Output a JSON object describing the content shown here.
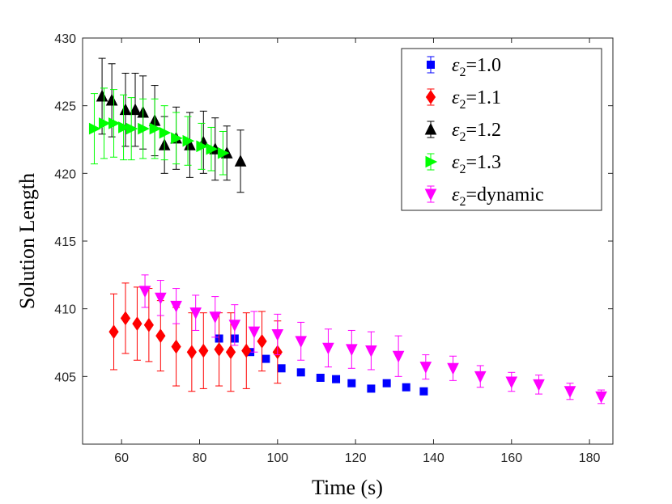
{
  "chart_data": {
    "type": "scatter",
    "title": "",
    "xlabel": "Time (s)",
    "ylabel": "Solution Length",
    "xlim": [
      50,
      186
    ],
    "ylim": [
      400,
      430
    ],
    "xticks": [
      60,
      80,
      100,
      120,
      140,
      160,
      180
    ],
    "xtick_labels": [
      "60",
      "80",
      "100",
      "120",
      "140",
      "160",
      "180"
    ],
    "yticks": [
      405,
      410,
      415,
      420,
      425,
      430
    ],
    "ytick_labels": [
      "405",
      "410",
      "415",
      "420",
      "425",
      "430"
    ],
    "grid": false,
    "legend_position": "top-right",
    "series": [
      {
        "name": "ε2=1.0",
        "legend_symbol": "ε",
        "legend_subscript": "2",
        "legend_value": "=1.0",
        "color": "#0000ff",
        "marker": "square",
        "x": [
          85.0,
          89.0,
          93.0,
          97.0,
          101.0,
          106.0,
          111.0,
          115.0,
          119.0,
          124.0,
          128.0,
          133.0,
          137.5
        ],
        "y": [
          407.8,
          407.8,
          406.8,
          406.3,
          405.6,
          405.3,
          404.9,
          404.8,
          404.5,
          404.1,
          404.5,
          404.2,
          403.9
        ],
        "err": [
          0.2,
          0.2,
          0.2,
          0.2,
          0.2,
          0.2,
          0.2,
          0.2,
          0.2,
          0.2,
          0.2,
          0.2,
          0.2
        ]
      },
      {
        "name": "ε2=1.1",
        "legend_symbol": "ε",
        "legend_subscript": "2",
        "legend_value": "=1.1",
        "color": "#ff0000",
        "marker": "diamond",
        "x": [
          58.0,
          61.0,
          64.0,
          67.0,
          70.0,
          74.0,
          78.0,
          81.0,
          85.0,
          88.0,
          92.0,
          96.0,
          100.0
        ],
        "y": [
          408.3,
          409.3,
          408.9,
          408.8,
          408.0,
          407.2,
          406.8,
          406.9,
          407.0,
          406.8,
          406.9,
          407.6,
          406.8
        ],
        "err": [
          2.8,
          2.6,
          2.7,
          2.7,
          2.6,
          2.9,
          2.9,
          2.8,
          2.7,
          2.9,
          2.8,
          2.2,
          2.3
        ]
      },
      {
        "name": "ε2=1.2",
        "legend_symbol": "ε",
        "legend_subscript": "2",
        "legend_value": "=1.2",
        "color": "#000000",
        "marker": "triangle-up",
        "x": [
          55.0,
          57.5,
          61.0,
          63.5,
          65.5,
          68.5,
          71.0,
          74.0,
          77.5,
          81.0,
          84.0,
          87.0,
          90.5
        ],
        "y": [
          425.7,
          425.4,
          424.7,
          424.7,
          424.5,
          423.9,
          422.1,
          422.6,
          422.1,
          422.3,
          421.8,
          421.5,
          420.9
        ],
        "err": [
          2.8,
          2.7,
          2.7,
          2.7,
          2.7,
          2.6,
          2.1,
          2.3,
          2.4,
          2.3,
          2.3,
          2.0,
          2.3
        ]
      },
      {
        "name": "ε2=1.3",
        "legend_symbol": "ε",
        "legend_subscript": "2",
        "legend_value": "=1.3",
        "color": "#00ff00",
        "marker": "triangle-right",
        "x": [
          53.0,
          55.5,
          58.0,
          60.5,
          62.5,
          65.5,
          68.5,
          71.0,
          74.0,
          77.0,
          80.5,
          83.0,
          86.0
        ],
        "y": [
          423.3,
          423.7,
          423.7,
          423.4,
          423.3,
          423.3,
          423.3,
          423.0,
          422.6,
          422.4,
          422.0,
          421.8,
          421.5
        ],
        "err": [
          2.6,
          2.6,
          2.5,
          2.4,
          2.3,
          2.2,
          2.2,
          2.0,
          1.9,
          1.8,
          1.7,
          1.6,
          1.6
        ]
      },
      {
        "name": "ε2=dynamic",
        "legend_symbol": "ε",
        "legend_subscript": "2",
        "legend_value": "=dynamic",
        "color": "#ff00ff",
        "marker": "triangle-down",
        "x": [
          66.0,
          70.0,
          74.0,
          79.0,
          84.0,
          89.0,
          94.0,
          100.0,
          106.0,
          113.0,
          119.0,
          124.0,
          131.0,
          138.0,
          145.0,
          152.0,
          160.0,
          167.0,
          175.0,
          183.0
        ],
        "y": [
          411.3,
          410.8,
          410.2,
          409.7,
          409.4,
          408.8,
          408.3,
          408.1,
          407.6,
          407.1,
          407.0,
          406.9,
          406.5,
          405.7,
          405.6,
          405.0,
          404.6,
          404.4,
          403.9,
          403.5
        ],
        "err": [
          1.2,
          1.3,
          1.3,
          1.3,
          1.5,
          1.5,
          1.5,
          1.5,
          1.4,
          1.4,
          1.4,
          1.4,
          1.5,
          0.9,
          0.9,
          0.8,
          0.7,
          0.7,
          0.6,
          0.5
        ]
      }
    ]
  }
}
